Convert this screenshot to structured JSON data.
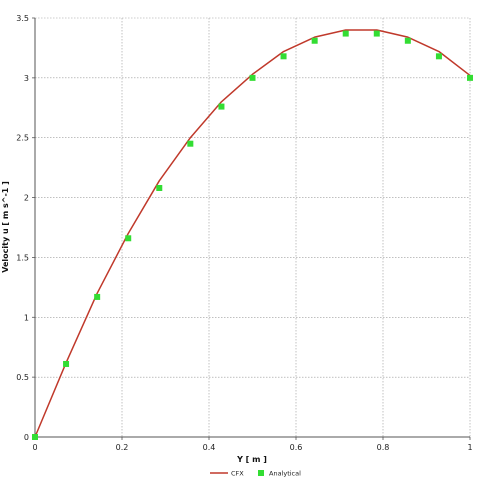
{
  "chart_data": {
    "type": "line",
    "title": "",
    "xlabel": "Y [ m ]",
    "ylabel": "Velocity u [ m s^-1 ]",
    "xlim": [
      0,
      1
    ],
    "ylim": [
      0,
      3.5
    ],
    "x_ticks": [
      "0",
      "0.2",
      "0.4",
      "0.6",
      "0.8",
      "1"
    ],
    "y_ticks": [
      "0",
      "0.5",
      "1",
      "1.5",
      "2",
      "2.5",
      "3",
      "3.5"
    ],
    "grid": true,
    "legend_position": "bottom-center",
    "series": [
      {
        "name": "CFX",
        "style": "line",
        "color": "#c0392b",
        "x": [
          0,
          0.0714,
          0.1429,
          0.2143,
          0.2857,
          0.3571,
          0.4286,
          0.5,
          0.5714,
          0.6429,
          0.7143,
          0.7857,
          0.8571,
          0.9286,
          1.0
        ],
        "y": [
          0,
          0.62,
          1.2,
          1.7,
          2.14,
          2.5,
          2.8,
          3.03,
          3.22,
          3.34,
          3.4,
          3.4,
          3.34,
          3.22,
          3.02
        ]
      },
      {
        "name": "Analytical",
        "style": "markers",
        "color": "#33dd33",
        "x": [
          0,
          0.0714,
          0.1429,
          0.2143,
          0.2857,
          0.3571,
          0.4286,
          0.5,
          0.5714,
          0.6429,
          0.7143,
          0.7857,
          0.8571,
          0.9286,
          1.0
        ],
        "y": [
          0,
          0.61,
          1.17,
          1.66,
          2.08,
          2.45,
          2.76,
          3.0,
          3.18,
          3.31,
          3.37,
          3.37,
          3.31,
          3.18,
          3.0
        ]
      }
    ]
  }
}
